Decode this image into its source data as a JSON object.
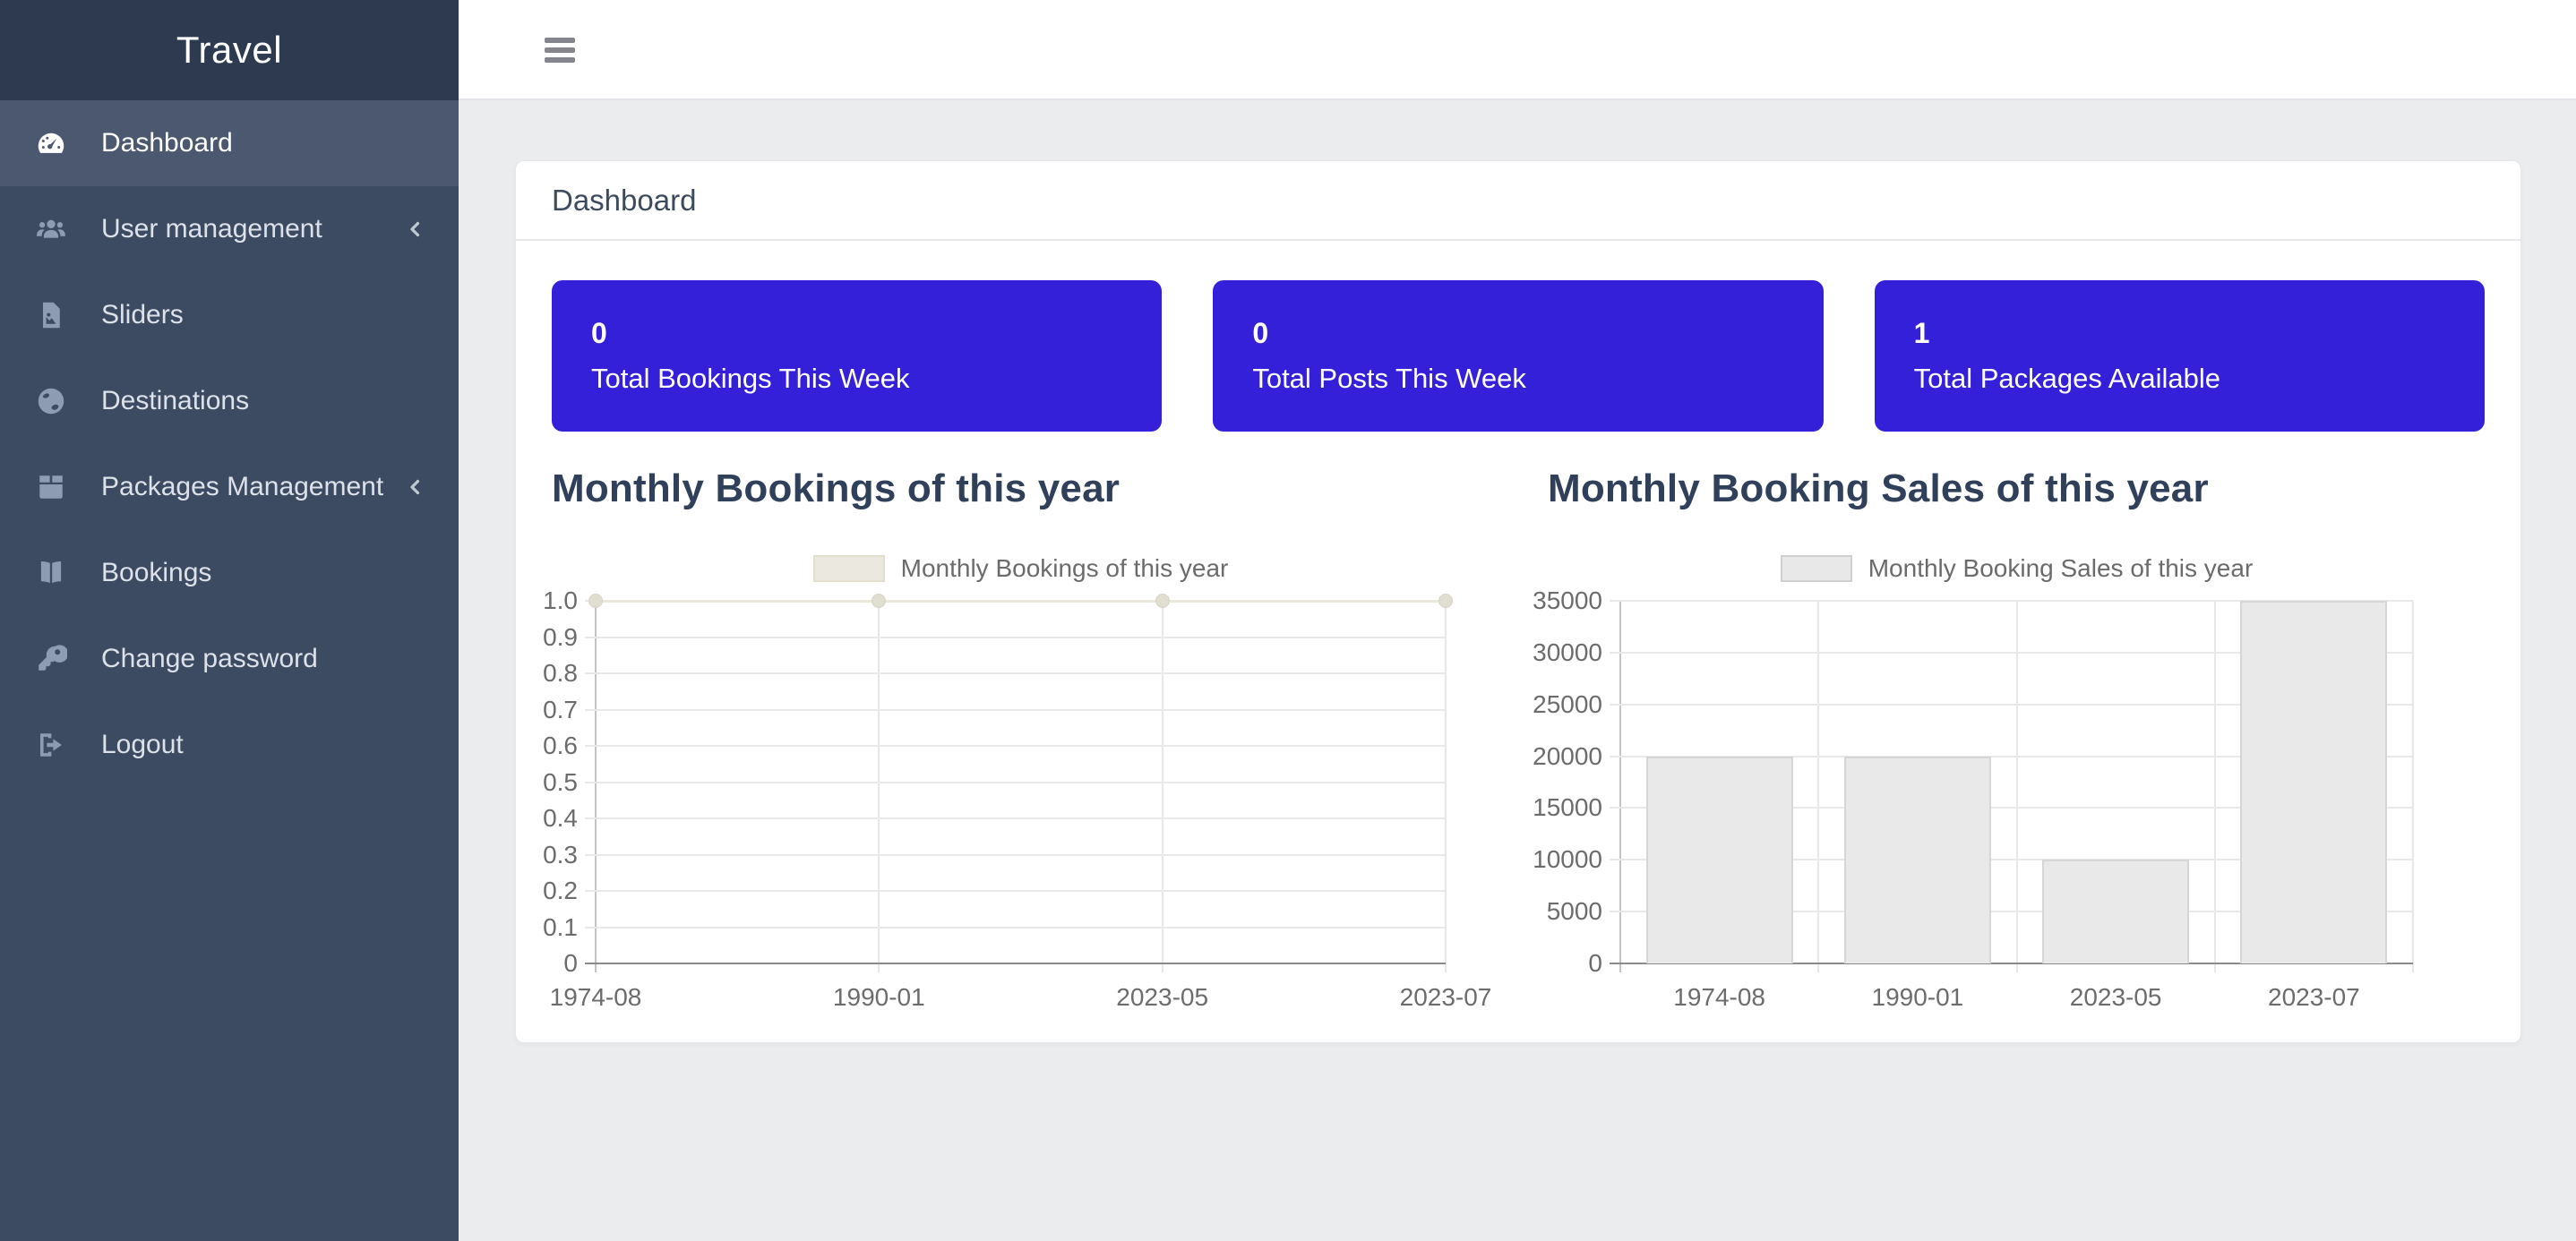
{
  "app": {
    "brand": "Travel"
  },
  "sidebar": {
    "items": [
      {
        "label": "Dashboard",
        "icon": "gauge-icon",
        "active": true,
        "chevron": false
      },
      {
        "label": "User management",
        "icon": "users-icon",
        "active": false,
        "chevron": true
      },
      {
        "label": "Sliders",
        "icon": "image-file-icon",
        "active": false,
        "chevron": false
      },
      {
        "label": "Destinations",
        "icon": "globe-icon",
        "active": false,
        "chevron": false
      },
      {
        "label": "Packages Management",
        "icon": "package-icon",
        "active": false,
        "chevron": true
      },
      {
        "label": "Bookings",
        "icon": "book-open-icon",
        "active": false,
        "chevron": false
      },
      {
        "label": "Change password",
        "icon": "key-icon",
        "active": false,
        "chevron": false
      },
      {
        "label": "Logout",
        "icon": "logout-icon",
        "active": false,
        "chevron": false
      }
    ]
  },
  "topbar": {
    "menu_icon": "hamburger-icon"
  },
  "panel": {
    "title": "Dashboard"
  },
  "stats": [
    {
      "value": "0",
      "label": "Total Bookings This Week"
    },
    {
      "value": "0",
      "label": "Total Posts This Week"
    },
    {
      "value": "1",
      "label": "Total Packages Available"
    }
  ],
  "colors": {
    "accent": "#3420d8",
    "sidebar_bg": "#3c4a62",
    "sidebar_header_bg": "#2d3a50",
    "sidebar_active_bg": "#4b5870",
    "content_bg": "#ebecee",
    "chart_title": "#31405a",
    "bar_fill": "#e9e9e9",
    "line_color": "#eae8da"
  },
  "chart_data": [
    {
      "type": "line",
      "title": "Monthly Bookings of this year",
      "legend": "Monthly Bookings of this year",
      "categories": [
        "1974-08",
        "1990-01",
        "2023-05",
        "2023-07"
      ],
      "values": [
        1,
        1,
        1,
        1
      ],
      "ylim": [
        0,
        1
      ],
      "y_ticks": [
        "1.0",
        "0.9",
        "0.8",
        "0.7",
        "0.6",
        "0.5",
        "0.4",
        "0.3",
        "0.2",
        "0.1",
        "0"
      ],
      "xlabel": "",
      "ylabel": "",
      "grid": true,
      "legend_position": "top"
    },
    {
      "type": "bar",
      "title": "Monthly Booking Sales of this year",
      "legend": "Monthly Booking Sales of this year",
      "categories": [
        "1974-08",
        "1990-01",
        "2023-05",
        "2023-07"
      ],
      "values": [
        20000,
        20000,
        10000,
        35000
      ],
      "ylim": [
        0,
        35000
      ],
      "y_ticks": [
        "35000",
        "30000",
        "25000",
        "20000",
        "15000",
        "10000",
        "5000",
        "0"
      ],
      "xlabel": "",
      "ylabel": "",
      "grid": true,
      "legend_position": "top"
    }
  ]
}
